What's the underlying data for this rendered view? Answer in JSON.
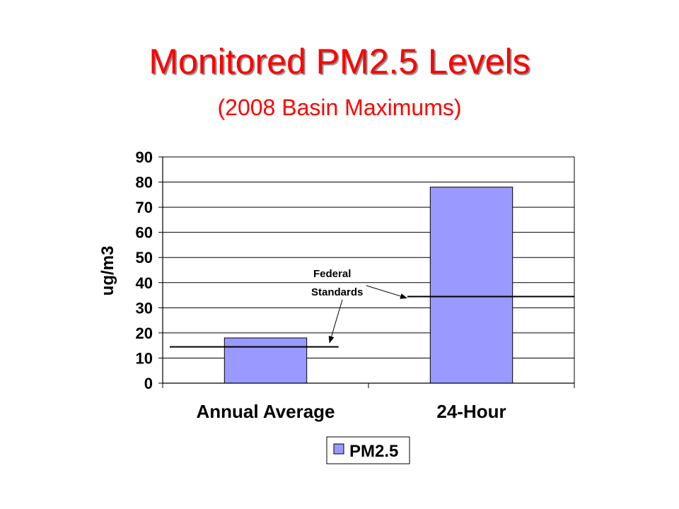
{
  "title": "Monitored PM2.5 Levels",
  "subtitle": "(2008 Basin Maximums)",
  "chart_data": {
    "type": "bar",
    "categories": [
      "Annual Average",
      "24-Hour"
    ],
    "series": [
      {
        "name": "PM2.5",
        "values": [
          18,
          78
        ],
        "color": "#9999ff"
      }
    ],
    "ylabel": "ug/m3",
    "ylim": [
      0,
      90
    ],
    "yticks": [
      0,
      10,
      20,
      30,
      40,
      50,
      60,
      70,
      80,
      90
    ],
    "grid": true,
    "legend": "bottom-center",
    "reference_lines": [
      {
        "category": "Annual Average",
        "value": 15
      },
      {
        "category": "24-Hour",
        "value": 35
      }
    ],
    "annotation": {
      "lines": [
        "Federal",
        "Standards"
      ]
    }
  }
}
